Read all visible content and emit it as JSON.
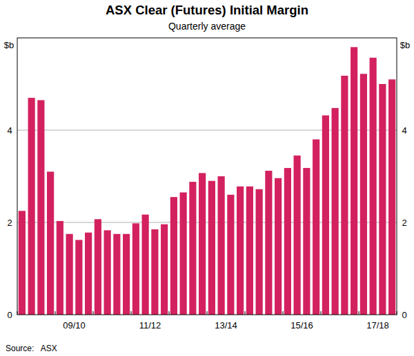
{
  "chart_data": {
    "type": "bar",
    "title": "ASX Clear (Futures) Initial Margin",
    "subtitle": "Quarterly average",
    "y_label": "$b",
    "source": "Source:   ASX",
    "categories": [
      null,
      null,
      null,
      null,
      null,
      null,
      "09/10",
      null,
      null,
      null,
      null,
      null,
      null,
      null,
      "11/12",
      null,
      null,
      null,
      null,
      null,
      null,
      null,
      "13/14",
      null,
      null,
      null,
      null,
      null,
      null,
      null,
      "15/16",
      null,
      null,
      null,
      null,
      null,
      null,
      null,
      "17/18",
      null
    ],
    "values": [
      2.25,
      4.7,
      4.65,
      3.1,
      2.03,
      1.75,
      1.62,
      1.78,
      2.07,
      1.83,
      1.75,
      1.75,
      1.98,
      2.17,
      1.85,
      1.96,
      2.55,
      2.65,
      2.88,
      3.07,
      2.9,
      3.0,
      2.6,
      2.78,
      2.78,
      2.72,
      3.12,
      2.96,
      3.18,
      3.45,
      3.18,
      3.8,
      4.32,
      4.48,
      5.18,
      5.8,
      5.22,
      5.57,
      5.0,
      5.1
    ],
    "color": "#d3215f",
    "ylim": [
      0,
      6
    ],
    "yticks": [
      0,
      2,
      4
    ],
    "grid": true
  }
}
